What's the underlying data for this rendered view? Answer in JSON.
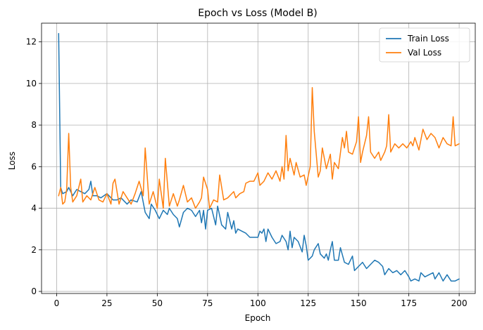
{
  "chart_data": {
    "type": "line",
    "title": "Epoch vs Loss (Model B)",
    "xlabel": "Epoch",
    "ylabel": "Loss",
    "xlim": [
      -7.5,
      208
    ],
    "ylim": [
      -0.1,
      12.9
    ],
    "xticks": [
      0,
      25,
      50,
      75,
      100,
      125,
      150,
      175,
      200
    ],
    "yticks": [
      0,
      2,
      4,
      6,
      8,
      10,
      12
    ],
    "grid": true,
    "legend_position": "upper right",
    "series": [
      {
        "name": "Train Loss",
        "color": "#1f77b4",
        "anchors": [
          [
            1,
            12.4
          ],
          [
            2,
            5.0
          ],
          [
            3,
            4.7
          ],
          [
            5,
            4.8
          ],
          [
            6,
            5.0
          ],
          [
            8,
            4.6
          ],
          [
            10,
            4.9
          ],
          [
            12,
            4.8
          ],
          [
            14,
            4.7
          ],
          [
            16,
            4.9
          ],
          [
            17,
            5.3
          ],
          [
            18,
            4.6
          ],
          [
            20,
            4.6
          ],
          [
            22,
            4.5
          ],
          [
            25,
            4.7
          ],
          [
            28,
            4.4
          ],
          [
            30,
            4.4
          ],
          [
            32,
            4.5
          ],
          [
            35,
            4.2
          ],
          [
            37,
            4.4
          ],
          [
            40,
            4.3
          ],
          [
            42,
            4.8
          ],
          [
            44,
            3.8
          ],
          [
            46,
            3.5
          ],
          [
            47,
            4.2
          ],
          [
            49,
            3.9
          ],
          [
            51,
            3.5
          ],
          [
            53,
            3.9
          ],
          [
            55,
            3.7
          ],
          [
            56,
            4.0
          ],
          [
            58,
            3.7
          ],
          [
            60,
            3.5
          ],
          [
            61,
            3.1
          ],
          [
            63,
            3.8
          ],
          [
            65,
            4.0
          ],
          [
            67,
            3.9
          ],
          [
            69,
            3.6
          ],
          [
            71,
            3.9
          ],
          [
            72,
            3.3
          ],
          [
            73,
            3.9
          ],
          [
            74,
            3.0
          ],
          [
            75,
            3.9
          ],
          [
            77,
            4.0
          ],
          [
            79,
            3.2
          ],
          [
            80,
            4.1
          ],
          [
            82,
            3.2
          ],
          [
            84,
            3.0
          ],
          [
            85,
            3.8
          ],
          [
            87,
            3.0
          ],
          [
            88,
            3.4
          ],
          [
            89,
            2.8
          ],
          [
            90,
            3.0
          ],
          [
            92,
            2.9
          ],
          [
            94,
            2.8
          ],
          [
            96,
            2.6
          ],
          [
            100,
            2.6
          ],
          [
            101,
            2.9
          ],
          [
            102,
            2.8
          ],
          [
            103,
            3.0
          ],
          [
            104,
            2.4
          ],
          [
            105,
            3.0
          ],
          [
            107,
            2.6
          ],
          [
            109,
            2.3
          ],
          [
            111,
            2.4
          ],
          [
            112,
            2.7
          ],
          [
            114,
            2.4
          ],
          [
            115,
            2.0
          ],
          [
            116,
            2.9
          ],
          [
            117,
            2.1
          ],
          [
            118,
            2.6
          ],
          [
            120,
            2.4
          ],
          [
            122,
            1.9
          ],
          [
            123,
            2.7
          ],
          [
            124,
            2.2
          ],
          [
            125,
            1.5
          ],
          [
            127,
            1.7
          ],
          [
            128,
            2.0
          ],
          [
            130,
            2.3
          ],
          [
            131,
            1.8
          ],
          [
            133,
            1.6
          ],
          [
            134,
            1.8
          ],
          [
            135,
            1.5
          ],
          [
            136,
            2.0
          ],
          [
            137,
            2.4
          ],
          [
            138,
            1.5
          ],
          [
            140,
            1.5
          ],
          [
            141,
            2.1
          ],
          [
            143,
            1.4
          ],
          [
            145,
            1.3
          ],
          [
            147,
            1.7
          ],
          [
            148,
            1.0
          ],
          [
            150,
            1.2
          ],
          [
            152,
            1.4
          ],
          [
            154,
            1.1
          ],
          [
            156,
            1.3
          ],
          [
            158,
            1.5
          ],
          [
            160,
            1.4
          ],
          [
            162,
            1.2
          ],
          [
            163,
            0.8
          ],
          [
            165,
            1.1
          ],
          [
            167,
            0.9
          ],
          [
            169,
            1.0
          ],
          [
            171,
            0.8
          ],
          [
            173,
            1.0
          ],
          [
            175,
            0.7
          ],
          [
            176,
            0.5
          ],
          [
            178,
            0.6
          ],
          [
            180,
            0.5
          ],
          [
            181,
            0.9
          ],
          [
            183,
            0.7
          ],
          [
            185,
            0.8
          ],
          [
            187,
            0.9
          ],
          [
            188,
            0.6
          ],
          [
            190,
            0.9
          ],
          [
            192,
            0.5
          ],
          [
            194,
            0.8
          ],
          [
            196,
            0.5
          ],
          [
            198,
            0.5
          ],
          [
            200,
            0.6
          ]
        ]
      },
      {
        "name": "Val Loss",
        "color": "#ff7f0e",
        "anchors": [
          [
            1,
            4.6
          ],
          [
            2,
            5.0
          ],
          [
            3,
            4.2
          ],
          [
            4,
            4.3
          ],
          [
            5,
            4.9
          ],
          [
            6,
            7.6
          ],
          [
            7,
            5.0
          ],
          [
            8,
            4.3
          ],
          [
            10,
            4.6
          ],
          [
            12,
            5.4
          ],
          [
            13,
            4.3
          ],
          [
            15,
            4.6
          ],
          [
            17,
            4.4
          ],
          [
            19,
            5.0
          ],
          [
            21,
            4.4
          ],
          [
            23,
            4.3
          ],
          [
            25,
            4.7
          ],
          [
            27,
            4.2
          ],
          [
            28,
            5.2
          ],
          [
            29,
            5.4
          ],
          [
            31,
            4.2
          ],
          [
            33,
            4.8
          ],
          [
            35,
            4.5
          ],
          [
            37,
            4.2
          ],
          [
            39,
            4.7
          ],
          [
            41,
            5.3
          ],
          [
            43,
            4.6
          ],
          [
            44,
            6.9
          ],
          [
            46,
            4.2
          ],
          [
            48,
            4.8
          ],
          [
            50,
            4.0
          ],
          [
            51,
            5.4
          ],
          [
            53,
            4.0
          ],
          [
            54,
            6.4
          ],
          [
            56,
            4.1
          ],
          [
            58,
            4.7
          ],
          [
            60,
            4.1
          ],
          [
            61,
            4.4
          ],
          [
            63,
            5.1
          ],
          [
            65,
            4.3
          ],
          [
            67,
            4.5
          ],
          [
            69,
            4.0
          ],
          [
            71,
            4.3
          ],
          [
            72,
            4.5
          ],
          [
            73,
            5.5
          ],
          [
            75,
            4.9
          ],
          [
            76,
            4.0
          ],
          [
            78,
            4.4
          ],
          [
            80,
            4.3
          ],
          [
            81,
            5.6
          ],
          [
            83,
            4.4
          ],
          [
            85,
            4.5
          ],
          [
            88,
            4.8
          ],
          [
            89,
            4.5
          ],
          [
            91,
            4.7
          ],
          [
            93,
            4.8
          ],
          [
            94,
            5.2
          ],
          [
            96,
            5.3
          ],
          [
            98,
            5.3
          ],
          [
            100,
            5.7
          ],
          [
            101,
            5.1
          ],
          [
            103,
            5.3
          ],
          [
            105,
            5.7
          ],
          [
            107,
            5.4
          ],
          [
            109,
            5.8
          ],
          [
            111,
            5.3
          ],
          [
            112,
            6.0
          ],
          [
            113,
            5.4
          ],
          [
            114,
            7.5
          ],
          [
            115,
            5.8
          ],
          [
            116,
            6.4
          ],
          [
            118,
            5.6
          ],
          [
            119,
            6.2
          ],
          [
            121,
            5.5
          ],
          [
            123,
            5.6
          ],
          [
            124,
            5.1
          ],
          [
            126,
            6.0
          ],
          [
            127,
            9.8
          ],
          [
            128,
            7.7
          ],
          [
            130,
            5.5
          ],
          [
            131,
            5.8
          ],
          [
            132,
            6.9
          ],
          [
            134,
            5.9
          ],
          [
            136,
            6.6
          ],
          [
            137,
            5.4
          ],
          [
            138,
            6.2
          ],
          [
            140,
            5.9
          ],
          [
            142,
            7.4
          ],
          [
            143,
            6.9
          ],
          [
            144,
            7.7
          ],
          [
            145,
            6.7
          ],
          [
            147,
            6.6
          ],
          [
            148,
            6.9
          ],
          [
            149,
            7.2
          ],
          [
            150,
            8.4
          ],
          [
            151,
            6.2
          ],
          [
            152,
            6.7
          ],
          [
            154,
            7.5
          ],
          [
            155,
            8.4
          ],
          [
            156,
            6.7
          ],
          [
            158,
            6.4
          ],
          [
            160,
            6.7
          ],
          [
            161,
            6.3
          ],
          [
            163,
            6.7
          ],
          [
            164,
            7.0
          ],
          [
            165,
            8.5
          ],
          [
            166,
            6.7
          ],
          [
            168,
            7.1
          ],
          [
            170,
            6.9
          ],
          [
            172,
            7.1
          ],
          [
            174,
            6.9
          ],
          [
            176,
            7.2
          ],
          [
            177,
            7.0
          ],
          [
            178,
            7.4
          ],
          [
            180,
            6.8
          ],
          [
            182,
            7.8
          ],
          [
            184,
            7.3
          ],
          [
            186,
            7.6
          ],
          [
            188,
            7.4
          ],
          [
            190,
            6.9
          ],
          [
            192,
            7.4
          ],
          [
            194,
            7.1
          ],
          [
            196,
            7.0
          ],
          [
            197,
            8.4
          ],
          [
            198,
            7.0
          ],
          [
            200,
            7.1
          ]
        ]
      }
    ]
  }
}
